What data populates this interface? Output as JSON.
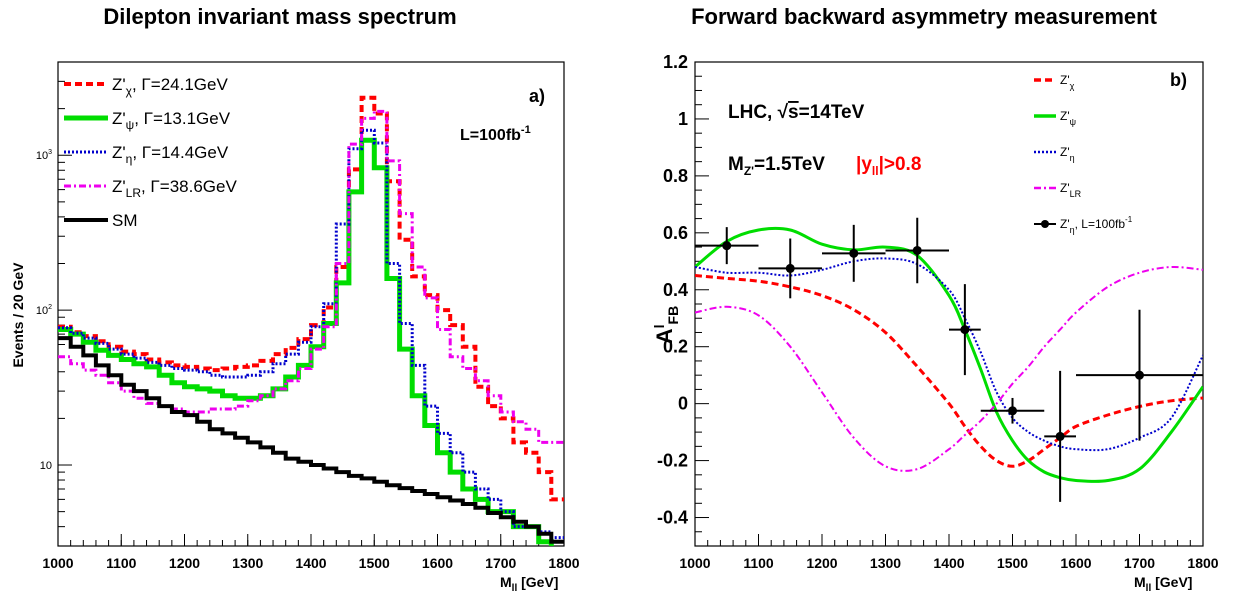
{
  "chart_data": [
    {
      "type": "line",
      "title": "Dilepton invariant mass spectrum",
      "panel_label": "a)",
      "xlabel": "M_ll [GeV]",
      "ylabel": "Events / 20 GeV",
      "annotation": "L=100fb^-1",
      "yscale": "log",
      "xlim": [
        1000,
        1800
      ],
      "ylim": [
        3,
        4000
      ],
      "xticks": [
        "1000",
        "1100",
        "1200",
        "1300",
        "1400",
        "1500",
        "1600",
        "1700",
        "1800"
      ],
      "yticks": [
        {
          "label": "10",
          "value": 10
        },
        {
          "label": "10^2",
          "value": 100
        },
        {
          "label": "10^3",
          "value": 1000
        }
      ],
      "bin_edges": [
        1000,
        1020,
        1040,
        1060,
        1080,
        1100,
        1120,
        1140,
        1160,
        1180,
        1200,
        1220,
        1240,
        1260,
        1280,
        1300,
        1320,
        1340,
        1360,
        1380,
        1400,
        1420,
        1440,
        1460,
        1480,
        1500,
        1520,
        1540,
        1560,
        1580,
        1600,
        1620,
        1640,
        1660,
        1680,
        1700,
        1720,
        1740,
        1760,
        1780,
        1800
      ],
      "series": [
        {
          "name": "Z'_χ, Γ=24.1GeV",
          "color": "#ff0000",
          "style": "dashed",
          "width": 4,
          "values": [
            78,
            72,
            68,
            63,
            58,
            54,
            52,
            48,
            46,
            44,
            43,
            42,
            41,
            42,
            43,
            44,
            47,
            52,
            57,
            65,
            80,
            104,
            190,
            810,
            2350,
            1860,
            680,
            285,
            165,
            125,
            100,
            80,
            58,
            32,
            24,
            20,
            14,
            12,
            9,
            6
          ]
        },
        {
          "name": "Z'_ψ, Γ=13.1GeV",
          "color": "#00dd00",
          "style": "solid",
          "width": 5,
          "values": [
            75,
            70,
            62,
            55,
            51,
            48,
            45,
            43,
            38,
            34,
            32,
            31,
            30,
            28,
            27,
            27,
            28,
            31,
            37,
            44,
            58,
            82,
            150,
            580,
            1250,
            830,
            160,
            56,
            28,
            18,
            12,
            9,
            7,
            6,
            5,
            5,
            4,
            4,
            3.2,
            2.8
          ]
        },
        {
          "name": "Z'_η, Γ=14.4GeV",
          "color": "#0000cc",
          "style": "dotted",
          "width": 3,
          "values": [
            77,
            71,
            66,
            61,
            56,
            52,
            49,
            46,
            44,
            42,
            41,
            40,
            38,
            37,
            37,
            38,
            40,
            45,
            52,
            62,
            78,
            110,
            360,
            1100,
            1450,
            1200,
            200,
            82,
            44,
            24,
            16,
            12,
            9,
            7,
            6,
            5,
            4,
            4,
            3.7,
            3.4
          ]
        },
        {
          "name": "Z'_LR, Γ=38.6GeV",
          "color": "#ee00ee",
          "style": "dashdot",
          "width": 3,
          "values": [
            50,
            45,
            41,
            38,
            34,
            30,
            27,
            25,
            24,
            23,
            22,
            22,
            23,
            23,
            24,
            26,
            28,
            31,
            35,
            42,
            56,
            78,
            200,
            1180,
            1730,
            1920,
            920,
            420,
            190,
            120,
            75,
            50,
            42,
            35,
            28,
            22,
            19,
            17,
            14,
            14
          ]
        },
        {
          "name": "SM",
          "color": "#000000",
          "style": "solid",
          "width": 4,
          "values": [
            66,
            58,
            51,
            44,
            38,
            33,
            30,
            27,
            24,
            22,
            21,
            19,
            17,
            16,
            15,
            14,
            13,
            12,
            11,
            10.5,
            10,
            9.5,
            9,
            8.5,
            8.2,
            7.8,
            7.4,
            7.1,
            6.8,
            6.5,
            6.2,
            5.9,
            5.6,
            5.3,
            4.9,
            4.6,
            4.3,
            4.0,
            3.6,
            3.2
          ]
        }
      ]
    },
    {
      "type": "line",
      "title": "Forward backward asymmetry measurement",
      "panel_label": "b)",
      "xlabel": "M_ll [GeV]",
      "ylabel": "A^l_FB",
      "annotations": [
        "LHC, √s=14TeV",
        "M_Z'=1.5TeV",
        "|y_ll|>0.8"
      ],
      "xlim": [
        1000,
        1800
      ],
      "ylim": [
        -0.5,
        1.2
      ],
      "xticks": [
        "1000",
        "1100",
        "1200",
        "1300",
        "1400",
        "1500",
        "1600",
        "1700",
        "1800"
      ],
      "yticks": [
        "-0.4",
        "-0.2",
        "0",
        "0.2",
        "0.4",
        "0.6",
        "0.8",
        "1",
        "1.2"
      ],
      "x": [
        1000,
        1050,
        1100,
        1150,
        1200,
        1250,
        1300,
        1350,
        1400,
        1425,
        1450,
        1475,
        1500,
        1525,
        1550,
        1575,
        1600,
        1650,
        1700,
        1750,
        1800
      ],
      "series": [
        {
          "name": "Z'_χ",
          "color": "#ff0000",
          "style": "dashed",
          "width": 3,
          "values": [
            0.45,
            0.44,
            0.43,
            0.41,
            0.38,
            0.33,
            0.25,
            0.13,
            0.0,
            -0.08,
            -0.15,
            -0.2,
            -0.22,
            -0.2,
            -0.16,
            -0.12,
            -0.08,
            -0.04,
            -0.01,
            0.01,
            0.02
          ]
        },
        {
          "name": "Z'_ψ",
          "color": "#00dd00",
          "style": "solid",
          "width": 3,
          "values": [
            0.48,
            0.57,
            0.61,
            0.61,
            0.56,
            0.54,
            0.55,
            0.52,
            0.38,
            0.26,
            0.12,
            -0.03,
            -0.13,
            -0.2,
            -0.24,
            -0.26,
            -0.27,
            -0.27,
            -0.23,
            -0.1,
            0.06
          ]
        },
        {
          "name": "Z'_η",
          "color": "#0000cc",
          "style": "dotted",
          "width": 2,
          "values": [
            0.48,
            0.46,
            0.46,
            0.45,
            0.47,
            0.5,
            0.51,
            0.49,
            0.4,
            0.3,
            0.18,
            0.04,
            -0.05,
            -0.1,
            -0.13,
            -0.15,
            -0.16,
            -0.16,
            -0.12,
            -0.05,
            0.17
          ]
        },
        {
          "name": "Z'_LR",
          "color": "#ee00ee",
          "style": "dashdot",
          "width": 2,
          "values": [
            0.32,
            0.34,
            0.31,
            0.2,
            0.04,
            -0.12,
            -0.22,
            -0.23,
            -0.16,
            -0.11,
            -0.06,
            0.0,
            0.07,
            0.13,
            0.2,
            0.26,
            0.32,
            0.41,
            0.46,
            0.48,
            0.47
          ]
        }
      ],
      "measurement": {
        "name": "Z'_η, L=100fb^-1",
        "color": "#000000",
        "points": [
          {
            "x": 1050,
            "y": 0.555,
            "xerr": 50,
            "yerr": 0.065
          },
          {
            "x": 1150,
            "y": 0.475,
            "xerr": 50,
            "yerr": 0.105
          },
          {
            "x": 1250,
            "y": 0.528,
            "xerr": 50,
            "yerr": 0.1
          },
          {
            "x": 1350,
            "y": 0.538,
            "xerr": 50,
            "yerr": 0.115
          },
          {
            "x": 1425,
            "y": 0.26,
            "xerr": 25,
            "yerr": 0.16
          },
          {
            "x": 1500,
            "y": -0.025,
            "xerr": 50,
            "yerr": 0.045
          },
          {
            "x": 1575,
            "y": -0.115,
            "xerr": 25,
            "yerr": 0.23
          },
          {
            "x": 1700,
            "y": 0.1,
            "xerr": 100,
            "yerr": 0.23
          }
        ]
      }
    }
  ]
}
